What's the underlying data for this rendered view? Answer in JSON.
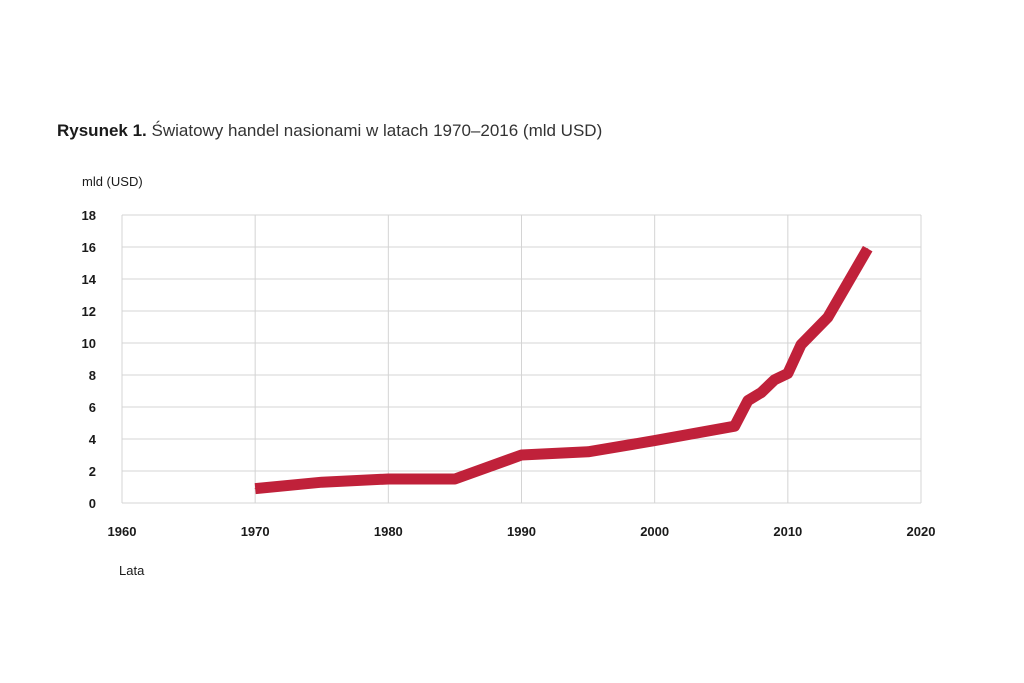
{
  "figure": {
    "title_lead": "Rysunek 1.",
    "title_rest": "Światowy handel nasionami w latach 1970–2016 (mld USD)"
  },
  "chart_data": {
    "type": "line",
    "title": "Światowy handel nasionami w latach 1970–2016 (mld USD)",
    "xlabel": "Lata",
    "ylabel": "mld (USD)",
    "xlim": [
      1960,
      2020
    ],
    "ylim": [
      0,
      18
    ],
    "x_ticks": [
      1960,
      1970,
      1980,
      1990,
      2000,
      2010,
      2020
    ],
    "y_ticks": [
      0,
      2,
      4,
      6,
      8,
      10,
      12,
      14,
      16,
      18
    ],
    "grid": true,
    "legend": "none",
    "series": [
      {
        "color": "#c0213a",
        "x": [
          1970,
          1975,
          1980,
          1985,
          1990,
          1995,
          2000,
          2006,
          2007,
          2008,
          2009,
          2010,
          2011,
          2013,
          2016
        ],
        "y": [
          0.9,
          1.3,
          1.5,
          1.5,
          3.0,
          3.2,
          3.9,
          4.8,
          6.4,
          6.9,
          7.7,
          8.1,
          9.9,
          11.6,
          15.9
        ]
      }
    ]
  }
}
